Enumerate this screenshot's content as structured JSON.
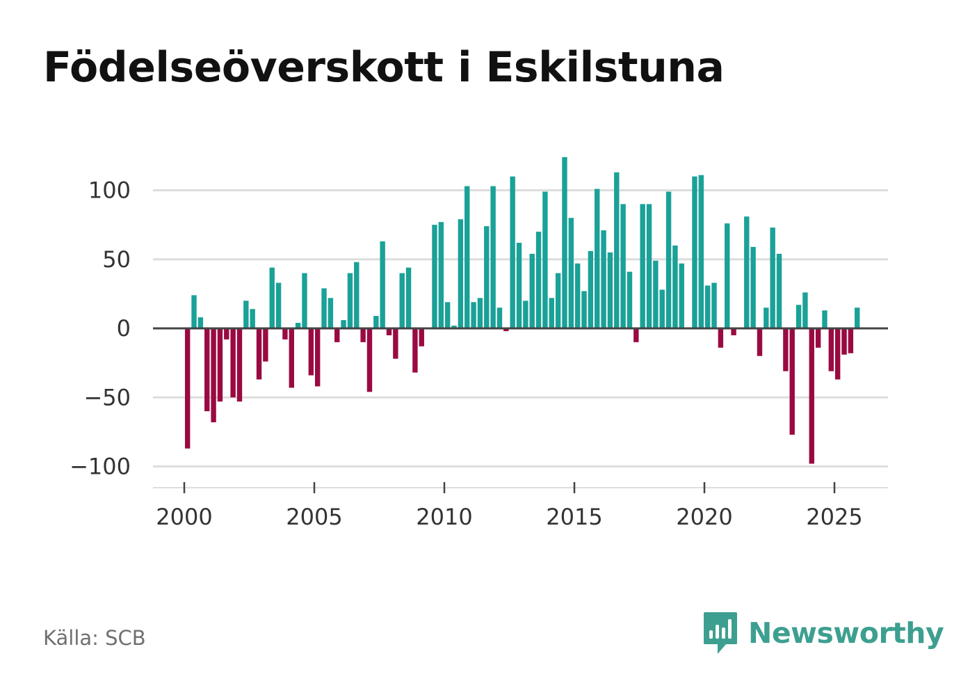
{
  "title": "Födelseöverskott i Eskilstuna",
  "source": "Källa: SCB",
  "brand": {
    "name": "Newsworthy",
    "icon": "bar-chart-speech-bubble-icon"
  },
  "colors": {
    "positive": "#1aa198",
    "negative": "#9a0a42",
    "grid": "#dddddd",
    "axis": "#444444",
    "brand": "#3d9f90"
  },
  "chart_data": {
    "type": "bar",
    "title": "Födelseöverskott i Eskilstuna",
    "xlabel": "",
    "ylabel": "",
    "ylim": [
      -105,
      128
    ],
    "xlim": [
      1999.5,
      2026.5
    ],
    "y_ticks": [
      100,
      50,
      0,
      -50,
      -100
    ],
    "y_tick_labels": [
      "100",
      "50",
      "0",
      "−50",
      "−100"
    ],
    "x_ticks": [
      2000,
      2005,
      2010,
      2015,
      2020,
      2025
    ],
    "x_tick_labels": [
      "2000",
      "2005",
      "2010",
      "2015",
      "2020",
      "2025"
    ],
    "grid": true,
    "frequency": "quarterly",
    "start_year": 2000,
    "values": [
      -87,
      24,
      8,
      -60,
      -68,
      -53,
      -8,
      -50,
      -53,
      20,
      14,
      -37,
      -24,
      44,
      33,
      -8,
      -43,
      4,
      40,
      -34,
      -42,
      29,
      22,
      -10,
      6,
      40,
      48,
      -10,
      -46,
      9,
      63,
      -5,
      -22,
      40,
      44,
      -32,
      -13,
      0,
      75,
      77,
      19,
      2,
      79,
      103,
      19,
      22,
      74,
      103,
      15,
      -2,
      110,
      62,
      20,
      54,
      70,
      99,
      22,
      40,
      124,
      80,
      47,
      27,
      56,
      101,
      71,
      55,
      113,
      90,
      41,
      -10,
      90,
      90,
      49,
      28,
      99,
      60,
      47,
      0,
      110,
      111,
      31,
      33,
      -14,
      76,
      -5,
      0,
      81,
      59,
      -20,
      15,
      73,
      54,
      -31,
      -77,
      17,
      26,
      -98,
      -14,
      13,
      -31,
      -37,
      -19,
      -18,
      15
    ]
  }
}
